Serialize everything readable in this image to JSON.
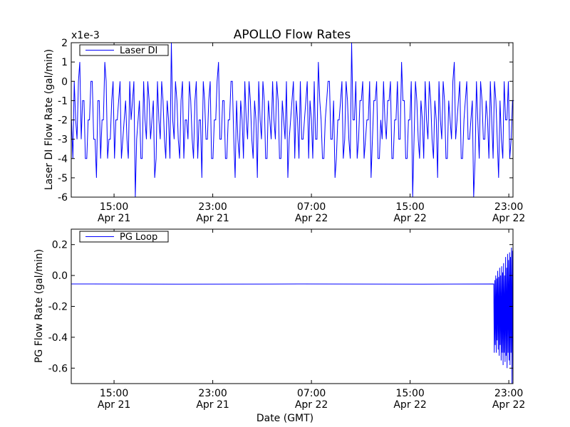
{
  "chart_data": [
    {
      "type": "line",
      "title": "APOLLO Flow Rates",
      "ylabel": "Laser DI Flow Rate (gal/min)",
      "xlabel": "",
      "y_offset_label": "x1e-3",
      "legend": {
        "label": "Laser DI",
        "placement": "top-left"
      },
      "color": "#0000ff",
      "xlim_hours_since_apr21_0000": [
        11.53,
        47.34
      ],
      "ylim": [
        -6,
        2
      ],
      "yticks": [
        2,
        1,
        0,
        -1,
        -2,
        -3,
        -4,
        -5,
        -6
      ],
      "ytick_labels": [
        "2",
        "1",
        "0",
        "-1",
        "-2",
        "-3",
        "-4",
        "-5",
        "-6"
      ],
      "xticks": [
        15,
        23,
        31,
        39,
        47
      ],
      "xtick_labels": [
        [
          "15:00",
          "Apr 21"
        ],
        [
          "23:00",
          "Apr 21"
        ],
        [
          "07:00",
          "Apr 22"
        ],
        [
          "15:00",
          "Apr 22"
        ],
        [
          "23:00",
          "Apr 22"
        ]
      ],
      "series": [
        {
          "name": "Laser DI",
          "x_start": 11.55,
          "x_end": 47.3,
          "values": [
            -2,
            0,
            -3,
            1,
            -1,
            -4,
            -2,
            0,
            -3,
            -5,
            -1,
            -2,
            1,
            -4,
            -3,
            0,
            -2,
            -1,
            -4,
            -2,
            -3,
            0,
            -1,
            -6,
            -2,
            -4,
            0,
            -3,
            -1,
            -2,
            -5,
            0,
            -3,
            -1,
            -4,
            -2,
            2,
            -3,
            -1,
            -4,
            0,
            -2,
            -3,
            -1,
            -4,
            0,
            -2,
            -5,
            -1,
            -3,
            0,
            -4,
            -2,
            1,
            -3,
            -1,
            -4,
            -2,
            0,
            -5,
            -3,
            -1,
            -4,
            -2,
            0,
            -3,
            -1,
            -5,
            -2,
            0,
            -4,
            -1,
            -3,
            -2,
            0,
            -4,
            -1,
            -3,
            -5,
            -2,
            0,
            -1,
            -4,
            -3,
            -2,
            0,
            -1,
            -4,
            -3,
            1,
            -2,
            -4,
            -1,
            0,
            -3,
            -5,
            -2,
            -1,
            -4,
            0,
            -3,
            2,
            -2,
            -4,
            -1,
            0,
            -3,
            -2,
            -5,
            -1,
            0,
            -4,
            -3,
            -2,
            -1,
            0,
            -4,
            -2,
            -3,
            1,
            -1,
            -4,
            -2,
            -6,
            0,
            -3,
            -1,
            -4,
            -2,
            0,
            -3,
            -1,
            -5,
            -2,
            0,
            -4,
            -1,
            -3,
            1,
            -2,
            0,
            -4,
            -1,
            -3,
            -2,
            -6,
            0,
            -4,
            -1,
            -3,
            -2,
            0,
            -4,
            -1,
            -5,
            -3,
            0,
            -2,
            -4,
            -1
          ]
        }
      ]
    },
    {
      "type": "line",
      "title": "",
      "ylabel": "PG Flow Rate (gal/min)",
      "xlabel": "Date (GMT)",
      "legend": {
        "label": "PG Loop",
        "placement": "top-left"
      },
      "color": "#0000ff",
      "xlim_hours_since_apr21_0000": [
        11.53,
        47.34
      ],
      "ylim": [
        -0.7,
        0.3
      ],
      "yticks": [
        0.2,
        0.0,
        -0.2,
        -0.4,
        -0.6
      ],
      "ytick_labels": [
        "0.2",
        "0.0",
        "-0.2",
        "-0.4",
        "-0.6"
      ],
      "xticks": [
        15,
        23,
        31,
        39,
        47
      ],
      "xtick_labels": [
        [
          "15:00",
          "Apr 21"
        ],
        [
          "23:00",
          "Apr 21"
        ],
        [
          "07:00",
          "Apr 22"
        ],
        [
          "15:00",
          "Apr 22"
        ],
        [
          "23:00",
          "Apr 22"
        ]
      ],
      "series": [
        {
          "name": "PG Loop",
          "x": [
            11.53,
            20,
            30,
            40,
            45.78,
            45.82,
            45.86,
            45.9,
            45.94,
            45.98,
            46.02,
            46.06,
            46.1,
            46.14,
            46.18,
            46.22,
            46.26,
            46.3,
            46.34,
            46.38,
            46.42,
            46.46,
            46.5,
            46.54,
            46.58,
            46.62,
            46.66,
            46.7,
            46.74,
            46.78,
            46.82,
            46.86,
            46.9,
            46.94,
            46.98,
            47.02,
            47.06,
            47.1,
            47.14,
            47.18,
            47.22,
            47.26,
            47.3,
            47.34
          ],
          "y": [
            -0.055,
            -0.056,
            -0.055,
            -0.056,
            -0.055,
            -0.5,
            -0.03,
            -0.45,
            0.0,
            -0.5,
            -0.02,
            -0.42,
            0.03,
            -0.48,
            -0.01,
            -0.52,
            0.05,
            -0.45,
            0.0,
            -0.55,
            0.06,
            -0.5,
            0.02,
            -0.58,
            0.08,
            -0.5,
            0.0,
            -0.56,
            0.12,
            -0.52,
            0.05,
            -0.6,
            0.14,
            -0.5,
            0.1,
            -0.55,
            0.15,
            -0.58,
            0.12,
            -0.5,
            0.18,
            -0.7,
            0.16,
            -0.6
          ]
        }
      ]
    }
  ]
}
